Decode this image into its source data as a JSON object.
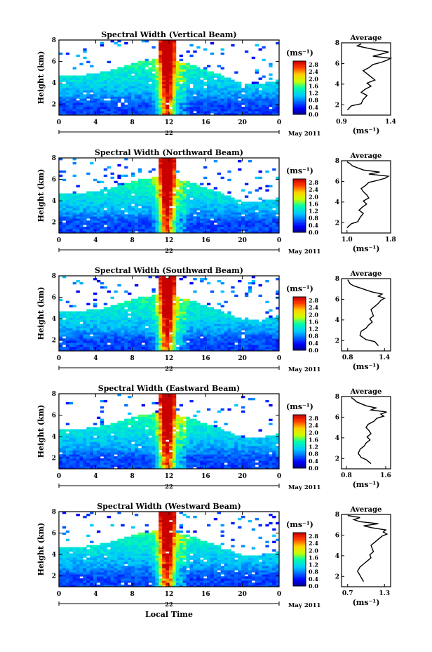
{
  "figure": {
    "xlabel": "Local Time",
    "date_day": "22",
    "date_month": "May 2011",
    "colorbar_unit": "(ms⁻¹)",
    "avg_title": "Average",
    "avg_unit": "(ms⁻¹)",
    "ylabel": "Height (km)"
  },
  "chart_data": [
    {
      "type": "heatmap",
      "title": "Spectral Width (Vertical Beam)",
      "ylabel": "Height (km)",
      "xlabel": "",
      "xlim": [
        0,
        24
      ],
      "ylim": [
        1,
        8
      ],
      "xticks": [
        "0",
        "4",
        "8",
        "12",
        "16",
        "20",
        "0"
      ],
      "yticks": [
        "2",
        "4",
        "6",
        "8"
      ],
      "colorbar_ticks": [
        "0.0",
        "0.4",
        "0.8",
        "1.2",
        "1.6",
        "2.0",
        "2.4",
        "2.8"
      ],
      "colorbar_range": [
        0,
        3
      ],
      "average_profile": {
        "xlim": [
          0.9,
          1.4
        ],
        "xticks": [
          "0.9",
          "1.4"
        ],
        "ylim": [
          1,
          8
        ],
        "yticks": [
          "2",
          "4",
          "6",
          "8"
        ],
        "x": [
          0.96,
          1.0,
          1.1,
          1.12,
          1.16,
          1.1,
          1.14,
          1.2,
          1.16,
          1.24,
          1.2,
          1.16,
          1.12,
          1.18,
          1.22,
          1.3,
          1.36,
          1.4,
          1.22,
          1.3,
          1.38,
          1.26,
          1.16,
          1.06,
          1.1
        ],
        "y": [
          1.5,
          1.9,
          2.1,
          2.5,
          2.9,
          3.2,
          3.5,
          3.8,
          4.1,
          4.4,
          4.7,
          5.0,
          5.3,
          5.6,
          5.9,
          6.1,
          6.3,
          6.5,
          6.7,
          6.9,
          7.1,
          7.3,
          7.5,
          7.7,
          7.9
        ]
      }
    },
    {
      "type": "heatmap",
      "title": "Spectral Width (Northward Beam)",
      "ylabel": "Height (km)",
      "xlabel": "",
      "xlim": [
        0,
        24
      ],
      "ylim": [
        1,
        8
      ],
      "xticks": [
        "0",
        "4",
        "8",
        "12",
        "16",
        "20",
        "0"
      ],
      "yticks": [
        "2",
        "4",
        "6",
        "8"
      ],
      "colorbar_ticks": [
        "0.0",
        "0.4",
        "0.8",
        "1.2",
        "1.6",
        "2.0",
        "2.4",
        "2.8"
      ],
      "colorbar_range": [
        0,
        3
      ],
      "average_profile": {
        "xlim": [
          0.9,
          1.8
        ],
        "xticks": [
          "1.0",
          "1.8"
        ],
        "ylim": [
          1,
          8
        ],
        "yticks": [
          "2",
          "4",
          "6",
          "8"
        ],
        "x": [
          1.0,
          1.08,
          1.2,
          1.24,
          1.3,
          1.22,
          1.28,
          1.36,
          1.3,
          1.4,
          1.36,
          1.3,
          1.26,
          1.34,
          1.4,
          1.56,
          1.7,
          1.76,
          1.4,
          1.6,
          1.3,
          1.2,
          1.1,
          1.06,
          1.0
        ],
        "y": [
          1.5,
          1.9,
          2.1,
          2.5,
          2.9,
          3.2,
          3.5,
          3.8,
          4.1,
          4.4,
          4.7,
          5.0,
          5.3,
          5.6,
          5.9,
          6.1,
          6.3,
          6.5,
          6.7,
          6.9,
          7.1,
          7.3,
          7.5,
          7.7,
          7.9
        ]
      }
    },
    {
      "type": "heatmap",
      "title": "Spectral Width (Southward Beam)",
      "ylabel": "Height (km)",
      "xlabel": "",
      "xlim": [
        0,
        24
      ],
      "ylim": [
        1,
        8
      ],
      "xticks": [
        "0",
        "4",
        "8",
        "12",
        "16",
        "20",
        "0"
      ],
      "yticks": [
        "2",
        "4",
        "6",
        "8"
      ],
      "colorbar_ticks": [
        "0.0",
        "0.4",
        "0.8",
        "1.2",
        "1.6",
        "2.0",
        "2.4",
        "2.8"
      ],
      "colorbar_range": [
        0,
        3
      ],
      "average_profile": {
        "xlim": [
          0.7,
          1.5
        ],
        "xticks": [
          "0.8",
          "1.4"
        ],
        "ylim": [
          1,
          8
        ],
        "yticks": [
          "2",
          "4",
          "6",
          "8"
        ],
        "x": [
          1.3,
          1.24,
          1.1,
          1.0,
          1.02,
          1.1,
          1.14,
          1.2,
          1.16,
          1.22,
          1.2,
          1.18,
          1.24,
          1.3,
          1.34,
          1.4,
          1.3,
          1.36,
          1.2,
          1.1,
          1.0,
          0.9,
          0.84,
          0.82,
          0.8
        ],
        "y": [
          1.5,
          1.9,
          2.1,
          2.5,
          2.9,
          3.2,
          3.5,
          3.8,
          4.1,
          4.4,
          4.7,
          5.0,
          5.3,
          5.6,
          5.9,
          6.1,
          6.3,
          6.5,
          6.7,
          6.9,
          7.1,
          7.3,
          7.5,
          7.7,
          7.9
        ]
      }
    },
    {
      "type": "heatmap",
      "title": "Spectral Width (Eastward Beam)",
      "ylabel": "Height (km)",
      "xlabel": "",
      "xlim": [
        0,
        24
      ],
      "ylim": [
        1,
        8
      ],
      "xticks": [
        "0",
        "4",
        "8",
        "12",
        "16",
        "20",
        "0"
      ],
      "yticks": [
        "2",
        "4",
        "6",
        "8"
      ],
      "colorbar_ticks": [
        "0.0",
        "0.4",
        "0.8",
        "1.2",
        "1.6",
        "2.0",
        "2.4",
        "2.8"
      ],
      "colorbar_range": [
        0,
        3
      ],
      "average_profile": {
        "xlim": [
          0.7,
          1.7
        ],
        "xticks": [
          "0.8",
          "1.6"
        ],
        "ylim": [
          1,
          8
        ],
        "yticks": [
          "2",
          "4",
          "6",
          "8"
        ],
        "x": [
          1.3,
          1.2,
          1.1,
          1.04,
          1.08,
          1.16,
          1.2,
          1.28,
          1.22,
          1.3,
          1.26,
          1.2,
          1.24,
          1.36,
          1.42,
          1.56,
          1.5,
          1.62,
          1.3,
          1.4,
          1.2,
          1.1,
          1.0,
          0.96,
          0.9
        ],
        "y": [
          1.5,
          1.9,
          2.1,
          2.5,
          2.9,
          3.2,
          3.5,
          3.8,
          4.1,
          4.4,
          4.7,
          5.0,
          5.3,
          5.6,
          5.9,
          6.1,
          6.3,
          6.5,
          6.7,
          6.9,
          7.1,
          7.3,
          7.5,
          7.7,
          7.9
        ]
      }
    },
    {
      "type": "heatmap",
      "title": "Spectral Width (Westward Beam)",
      "ylabel": "Height (km)",
      "xlabel": "Local Time",
      "xlim": [
        0,
        24
      ],
      "ylim": [
        1,
        8
      ],
      "xticks": [
        "0",
        "4",
        "8",
        "12",
        "16",
        "20",
        "0"
      ],
      "yticks": [
        "2",
        "4",
        "6",
        "8"
      ],
      "colorbar_ticks": [
        "0.0",
        "0.4",
        "0.8",
        "1.2",
        "1.6",
        "2.0",
        "2.4",
        "2.8"
      ],
      "colorbar_range": [
        0,
        3
      ],
      "average_profile": {
        "xlim": [
          0.6,
          1.4
        ],
        "xticks": [
          "0.7",
          "1.3"
        ],
        "ylim": [
          1,
          8
        ],
        "yticks": [
          "2",
          "4",
          "6",
          "8"
        ],
        "x": [
          0.96,
          0.92,
          0.9,
          0.86,
          0.9,
          0.96,
          1.02,
          1.08,
          1.06,
          1.12,
          1.1,
          1.08,
          1.14,
          1.2,
          1.26,
          1.34,
          1.28,
          1.32,
          1.1,
          0.96,
          1.2,
          0.9,
          0.8,
          0.9,
          0.7
        ],
        "y": [
          1.5,
          1.9,
          2.1,
          2.5,
          2.9,
          3.2,
          3.5,
          3.8,
          4.1,
          4.4,
          4.7,
          5.0,
          5.3,
          5.6,
          5.9,
          6.1,
          6.3,
          6.5,
          6.7,
          6.9,
          7.1,
          7.3,
          7.5,
          7.7,
          7.9
        ]
      }
    }
  ]
}
